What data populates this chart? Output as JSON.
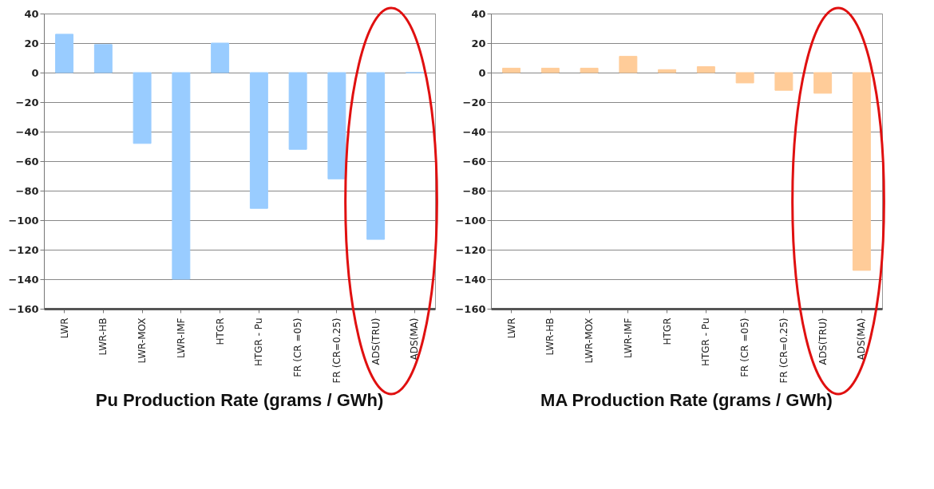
{
  "chart_data": [
    {
      "type": "bar",
      "title": "Pu Production Rate (grams / GWh)",
      "categories": [
        "LWR",
        "LWR-HB",
        "LWR-MOX",
        "LWR-IMF",
        "HTGR",
        "HTGR - Pu",
        "FR (CR =05)",
        "FR (CR=0.25)",
        "ADS(TRU)",
        "ADS(MA)"
      ],
      "values": [
        26,
        19,
        -48,
        -140,
        20,
        -92,
        -52,
        -72,
        -113,
        0
      ],
      "color": "#99ccff",
      "ylim": [
        -160,
        40
      ],
      "yticks": [
        -160,
        -140,
        -120,
        -100,
        -80,
        -60,
        -40,
        -20,
        0,
        20,
        40
      ],
      "grid": "y"
    },
    {
      "type": "bar",
      "title": "MA Production Rate (grams / GWh)",
      "categories": [
        "LWR",
        "LWR-HB",
        "LWR-MOX",
        "LWR-IMF",
        "HTGR",
        "HTGR - Pu",
        "FR (CR =05)",
        "FR (CR=0.25)",
        "ADS(TRU)",
        "ADS(MA)"
      ],
      "values": [
        3,
        3,
        3,
        11,
        2,
        4,
        -7,
        -12,
        -14,
        -134
      ],
      "color": "#ffcc99",
      "ylim": [
        -160,
        40
      ],
      "yticks": [
        -160,
        -140,
        -120,
        -100,
        -80,
        -60,
        -40,
        -20,
        0,
        20,
        40
      ],
      "grid": "y"
    }
  ]
}
